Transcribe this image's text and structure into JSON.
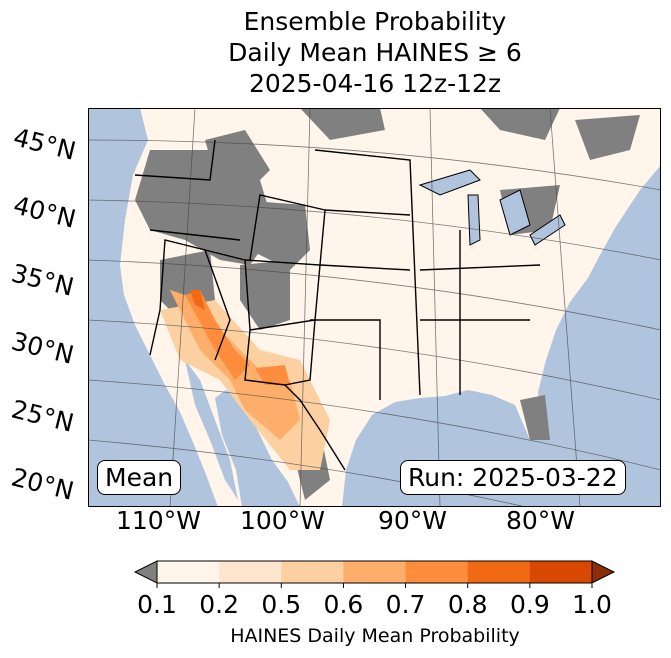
{
  "chart_data": {
    "type": "heatmap",
    "title": [
      "Ensemble Probability",
      "Daily Mean HAINES ≥ 6",
      "2025-04-16 12z-12z"
    ],
    "lat_labels": [
      "45°N",
      "40°N",
      "35°N",
      "30°N",
      "25°N",
      "20°N"
    ],
    "lon_labels": [
      "110°W",
      "100°W",
      "90°W",
      "80°W"
    ],
    "annotations": {
      "left": "Mean",
      "right": "Run: 2025-03-22"
    },
    "colorbar": {
      "label": "HAINES Daily Mean Probability",
      "ticks": [
        "0.1",
        "0.2",
        "0.5",
        "0.6",
        "0.7",
        "0.8",
        "0.9",
        "1.0"
      ],
      "colors": [
        "#fff5eb",
        "#fee6ce",
        "#fdd0a2",
        "#fdae6b",
        "#fd8d3c",
        "#f16913",
        "#d94801"
      ],
      "under": "#808080",
      "over": "#8c2d04"
    },
    "colors": {
      "ocean": "#b0c4de",
      "land_low": "#808080"
    },
    "highlights": "Highest probabilities (0.6-0.9) over Arizona, southern Nevada, New Mexico, West Texas and northern Mexico"
  }
}
